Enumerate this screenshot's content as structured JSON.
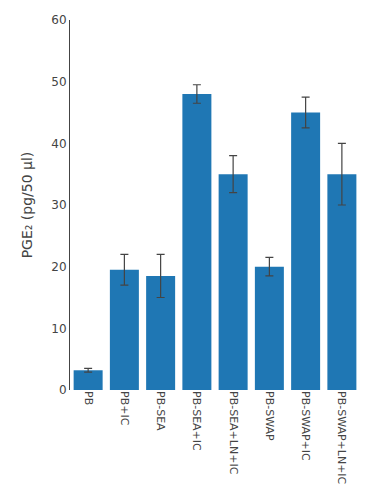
{
  "chart_data": {
    "type": "bar",
    "categories": [
      "PB",
      "PB+IC",
      "PB-SEA",
      "PB-SEA+IC",
      "PB-SEA+LN+IC",
      "PB-SWAP",
      "PB-SWAP+IC",
      "PB-SWAP+LN+IC"
    ],
    "values": [
      3.2,
      19.5,
      18.5,
      48.0,
      35.0,
      20.0,
      45.0,
      35.0
    ],
    "errors": [
      0.3,
      2.5,
      3.5,
      1.5,
      3.0,
      1.5,
      2.5,
      5.0
    ],
    "ylabel": "PGE₂ (pg/50 μl)",
    "ylim": [
      0,
      60
    ],
    "yticks": [
      0,
      10,
      20,
      30,
      40,
      50,
      60
    ],
    "grid": false
  }
}
